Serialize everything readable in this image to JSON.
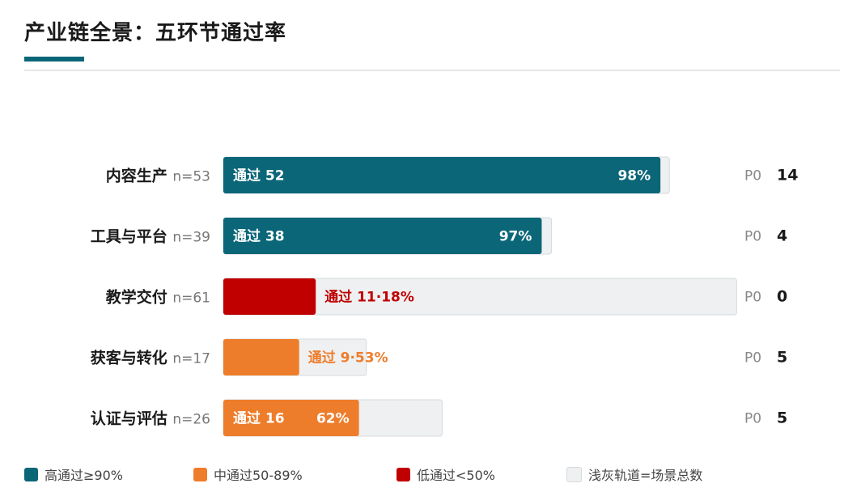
{
  "header": {
    "title": "产业链全景：五环节通过率"
  },
  "colors": {
    "high": "#0b6678",
    "mid": "#ee7d2b",
    "low": "#c00000",
    "track": "#eef0f1",
    "track_border": "#d5dadc"
  },
  "chart_data": {
    "type": "bar",
    "orientation": "horizontal",
    "title": "产业链全景：五环节通过率",
    "rows": [
      {
        "label": "内容生产",
        "n_label": "n=53",
        "total": 53,
        "passed": 52,
        "rate": 98,
        "tier": "high",
        "pass_label": "通过 52",
        "rate_label": "98%",
        "p0_label": "P0",
        "p0_value": "14"
      },
      {
        "label": "工具与平台",
        "n_label": "n=39",
        "total": 39,
        "passed": 38,
        "rate": 97,
        "tier": "high",
        "pass_label": "通过 38",
        "rate_label": "97%",
        "p0_label": "P0",
        "p0_value": "4"
      },
      {
        "label": "教学交付",
        "n_label": "n=61",
        "total": 61,
        "passed": 11,
        "rate": 18,
        "tier": "low",
        "pass_label": "通过 11·18%",
        "rate_label": "",
        "p0_label": "P0",
        "p0_value": "0"
      },
      {
        "label": "获客与转化",
        "n_label": "n=17",
        "total": 17,
        "passed": 9,
        "rate": 53,
        "tier": "mid",
        "pass_label": "通过 9·53%",
        "rate_label": "",
        "p0_label": "P0",
        "p0_value": "5"
      },
      {
        "label": "认证与评估",
        "n_label": "n=26",
        "total": 26,
        "passed": 16,
        "rate": 62,
        "tier": "mid",
        "pass_label": "通过 16",
        "rate_label": "62%",
        "p0_label": "P0",
        "p0_value": "5"
      }
    ],
    "legend": [
      {
        "key": "high",
        "label": "高通过≥90%"
      },
      {
        "key": "mid",
        "label": "中通过50-89%"
      },
      {
        "key": "low",
        "label": "低通过<50%"
      },
      {
        "key": "track",
        "label": "浅灰轨道=场景总数"
      }
    ]
  }
}
